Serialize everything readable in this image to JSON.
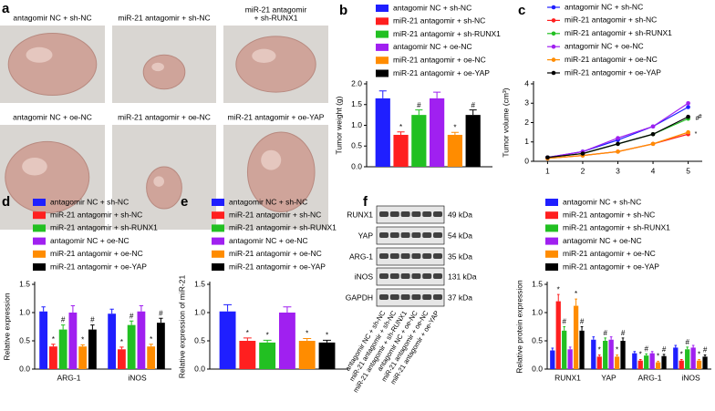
{
  "photos": {
    "panel": "a",
    "tiles": [
      {
        "label": [
          "antagomir NC + sh-NC"
        ]
      },
      {
        "label": [
          "miR-21 antagomir + sh-NC"
        ]
      },
      {
        "label": [
          "miR-21 antagomir",
          "+ sh-RUNX1"
        ]
      },
      {
        "label": [
          "antagomir NC + oe-NC"
        ]
      },
      {
        "label": [
          "miR-21 antagomir + oe-NC"
        ]
      },
      {
        "label": [
          "miR-21 antagomir + oe-YAP"
        ]
      }
    ]
  },
  "blot": {
    "panel": "f",
    "rows": [
      {
        "name": "RUNX1",
        "size": "49 kDa"
      },
      {
        "name": "YAP",
        "size": "54 kDa"
      },
      {
        "name": "ARG-1",
        "size": "35 kDa"
      },
      {
        "name": "iNOS",
        "size": "131 kDa"
      },
      {
        "name": "GAPDH",
        "size": "37 kDa"
      }
    ],
    "lanes": [
      "antagomir NC + sh-NC",
      "miR-21 antagomir + sh-NC",
      "miR-21 antagomir + sh-RUNX1",
      "antagomir NC + oe-NC",
      "miR-21 antagomir + oe-NC",
      "miR-21 antagomir + oe-YAP"
    ]
  },
  "chart_data": [
    {
      "type": "bar",
      "panel": "b",
      "y_label": "Tumor weight (g)",
      "ylim": [
        0,
        2
      ],
      "yticks": [
        {
          "value": 0,
          "label": "0.0"
        },
        0.5,
        {
          "value": 1,
          "label": "1.0"
        },
        1.5,
        {
          "value": 2,
          "label": "2.0"
        }
      ],
      "series": [
        {
          "name": "antagomir NC + sh-NC",
          "color": "#1f1fff",
          "values": [
            1.65
          ],
          "errors": [
            0.18
          ],
          "markers": [
            null
          ]
        },
        {
          "name": "miR-21 antagomir + sh-NC",
          "color": "#ff1f1f",
          "values": [
            0.77
          ],
          "errors": [
            0.07
          ],
          "markers": [
            "*"
          ]
        },
        {
          "name": "miR-21 antagomir + sh-RUNX1",
          "color": "#22c022",
          "values": [
            1.25
          ],
          "errors": [
            0.12
          ],
          "markers": [
            "#"
          ]
        },
        {
          "name": "antagomir NC + oe-NC",
          "color": "#a020f0",
          "values": [
            1.65
          ],
          "errors": [
            0.15
          ],
          "markers": [
            null
          ]
        },
        {
          "name": "miR-21 antagomir + oe-NC",
          "color": "#ff8c00",
          "values": [
            0.77
          ],
          "errors": [
            0.06
          ],
          "markers": [
            "*"
          ]
        },
        {
          "name": "miR-21 antagomir + oe-YAP",
          "color": "#000000",
          "values": [
            1.25
          ],
          "errors": [
            0.12
          ],
          "markers": [
            "#"
          ]
        }
      ]
    },
    {
      "type": "line",
      "panel": "c",
      "y_label": "Tumor volume (cm³)",
      "x": [
        1,
        2,
        3,
        4,
        5
      ],
      "xlim": [
        0.6,
        5.4
      ],
      "xticks": [
        1,
        2,
        3,
        4,
        5
      ],
      "ylim": [
        0,
        4
      ],
      "yticks": [
        0,
        1,
        2,
        3,
        4
      ],
      "series": [
        {
          "name": "antagomir NC + sh-NC",
          "color": "#1f1fff",
          "values": [
            0.2,
            0.5,
            1.1,
            1.8,
            2.8
          ],
          "markers": [
            null,
            null,
            null,
            null,
            null
          ]
        },
        {
          "name": "miR-21 antagomir + sh-NC",
          "color": "#ff1f1f",
          "values": [
            0.15,
            0.3,
            0.5,
            0.9,
            1.4
          ],
          "markers": [
            null,
            null,
            null,
            null,
            "*"
          ]
        },
        {
          "name": "miR-21 antagomir + sh-RUNX1",
          "color": "#22c022",
          "values": [
            0.2,
            0.4,
            0.9,
            1.4,
            2.2
          ],
          "markers": [
            null,
            null,
            null,
            null,
            "#"
          ]
        },
        {
          "name": "antagomir NC + oe-NC",
          "color": "#a020f0",
          "values": [
            0.2,
            0.5,
            1.2,
            1.8,
            3.0
          ],
          "markers": [
            null,
            null,
            null,
            null,
            null
          ]
        },
        {
          "name": "miR-21 antagomir + oe-NC",
          "color": "#ff8c00",
          "values": [
            0.15,
            0.3,
            0.5,
            0.9,
            1.5
          ],
          "markers": [
            null,
            null,
            null,
            null,
            null
          ]
        },
        {
          "name": "miR-21 antagomir + oe-YAP",
          "color": "#000000",
          "values": [
            0.2,
            0.4,
            0.9,
            1.4,
            2.3
          ],
          "markers": [
            null,
            null,
            null,
            null,
            "#"
          ]
        }
      ]
    },
    {
      "type": "bar",
      "panel": "d",
      "y_label": "Relative expression",
      "categories": [
        "ARG-1",
        "iNOS"
      ],
      "ylim": [
        0,
        1.5
      ],
      "yticks": [
        {
          "value": 0,
          "label": "0.0"
        },
        0.5,
        {
          "value": 1,
          "label": "1.0"
        },
        1.5
      ],
      "series": [
        {
          "name": "antagomir NC + sh-NC",
          "color": "#1f1fff",
          "values": [
            1.02,
            0.98
          ],
          "errors": [
            0.08,
            0.08
          ],
          "markers": [
            null,
            null
          ]
        },
        {
          "name": "miR-21 antagomir + sh-NC",
          "color": "#ff1f1f",
          "values": [
            0.4,
            0.35
          ],
          "errors": [
            0.04,
            0.04
          ],
          "markers": [
            "*",
            "*"
          ]
        },
        {
          "name": "miR-21 antagomir + sh-RUNX1",
          "color": "#22c022",
          "values": [
            0.7,
            0.78
          ],
          "errors": [
            0.08,
            0.07
          ],
          "markers": [
            "#",
            "#"
          ]
        },
        {
          "name": "antagomir NC + oe-NC",
          "color": "#a020f0",
          "values": [
            1.0,
            1.02
          ],
          "errors": [
            0.12,
            0.1
          ],
          "markers": [
            null,
            null
          ]
        },
        {
          "name": "miR-21 antagomir + oe-NC",
          "color": "#ff8c00",
          "values": [
            0.4,
            0.4
          ],
          "errors": [
            0.03,
            0.04
          ],
          "markers": [
            "*",
            "*"
          ]
        },
        {
          "name": "miR-21 antagomir + oe-YAP",
          "color": "#000000",
          "values": [
            0.7,
            0.82
          ],
          "errors": [
            0.08,
            0.08
          ],
          "markers": [
            "#",
            "#"
          ]
        }
      ]
    },
    {
      "type": "bar",
      "panel": "e",
      "y_label": "Relative expression of miR-21",
      "ylim": [
        0,
        1.5
      ],
      "yticks": [
        {
          "value": 0,
          "label": "0.0"
        },
        0.5,
        {
          "value": 1,
          "label": "1.0"
        },
        1.5
      ],
      "series": [
        {
          "name": "antagomir NC + sh-NC",
          "color": "#1f1fff",
          "values": [
            1.02
          ],
          "errors": [
            0.12
          ],
          "markers": [
            null
          ]
        },
        {
          "name": "miR-21 antagomir + sh-NC",
          "color": "#ff1f1f",
          "values": [
            0.5
          ],
          "errors": [
            0.05
          ],
          "markers": [
            "*"
          ]
        },
        {
          "name": "miR-21 antagomir + sh-RUNX1",
          "color": "#22c022",
          "values": [
            0.47
          ],
          "errors": [
            0.04
          ],
          "markers": [
            "*"
          ]
        },
        {
          "name": "antagomir NC + oe-NC",
          "color": "#a020f0",
          "values": [
            1.0
          ],
          "errors": [
            0.1
          ],
          "markers": [
            null
          ]
        },
        {
          "name": "miR-21 antagomir + oe-NC",
          "color": "#ff8c00",
          "values": [
            0.5
          ],
          "errors": [
            0.04
          ],
          "markers": [
            "*"
          ]
        },
        {
          "name": "miR-21 antagomir + oe-YAP",
          "color": "#000000",
          "values": [
            0.47
          ],
          "errors": [
            0.04
          ],
          "markers": [
            "*"
          ]
        }
      ]
    },
    {
      "type": "bar",
      "y_label": "Relative protein expression",
      "categories": [
        "RUNX1",
        "YAP",
        "ARG-1",
        "iNOS"
      ],
      "ylim": [
        0,
        1.5
      ],
      "yticks": [
        {
          "value": 0,
          "label": "0.0"
        },
        0.5,
        {
          "value": 1,
          "label": "1.0"
        },
        1.5
      ],
      "series": [
        {
          "name": "antagomir NC + sh-NC",
          "color": "#1f1fff",
          "values": [
            0.33,
            0.52,
            0.28,
            0.38
          ],
          "errors": [
            0.04,
            0.05,
            0.03,
            0.04
          ],
          "markers": [
            null,
            null,
            null,
            null
          ]
        },
        {
          "name": "miR-21 antagomir + sh-NC",
          "color": "#ff1f1f",
          "values": [
            1.2,
            0.22,
            0.15,
            0.15
          ],
          "errors": [
            0.12,
            0.03,
            0.02,
            0.02
          ],
          "markers": [
            "*",
            "*",
            "*",
            "*"
          ]
        },
        {
          "name": "miR-21 antagomir + sh-RUNX1",
          "color": "#22c022",
          "values": [
            0.68,
            0.5,
            0.24,
            0.35
          ],
          "errors": [
            0.07,
            0.05,
            0.03,
            0.04
          ],
          "markers": [
            "#",
            "#",
            "#",
            "#"
          ]
        },
        {
          "name": "antagomir NC + oe-NC",
          "color": "#a020f0",
          "values": [
            0.35,
            0.52,
            0.28,
            0.38
          ],
          "errors": [
            0.04,
            0.05,
            0.03,
            0.04
          ],
          "markers": [
            null,
            null,
            null,
            null
          ]
        },
        {
          "name": "miR-21 antagomir + oe-NC",
          "color": "#ff8c00",
          "values": [
            1.12,
            0.22,
            0.12,
            0.15
          ],
          "errors": [
            0.12,
            0.03,
            0.02,
            0.02
          ],
          "markers": [
            "*",
            "*",
            "*",
            "*"
          ]
        },
        {
          "name": "miR-21 antagomir + oe-YAP",
          "color": "#000000",
          "values": [
            0.68,
            0.5,
            0.23,
            0.22
          ],
          "errors": [
            0.07,
            0.05,
            0.03,
            0.03
          ],
          "markers": [
            "#",
            "#",
            "#",
            "#"
          ]
        }
      ]
    }
  ]
}
